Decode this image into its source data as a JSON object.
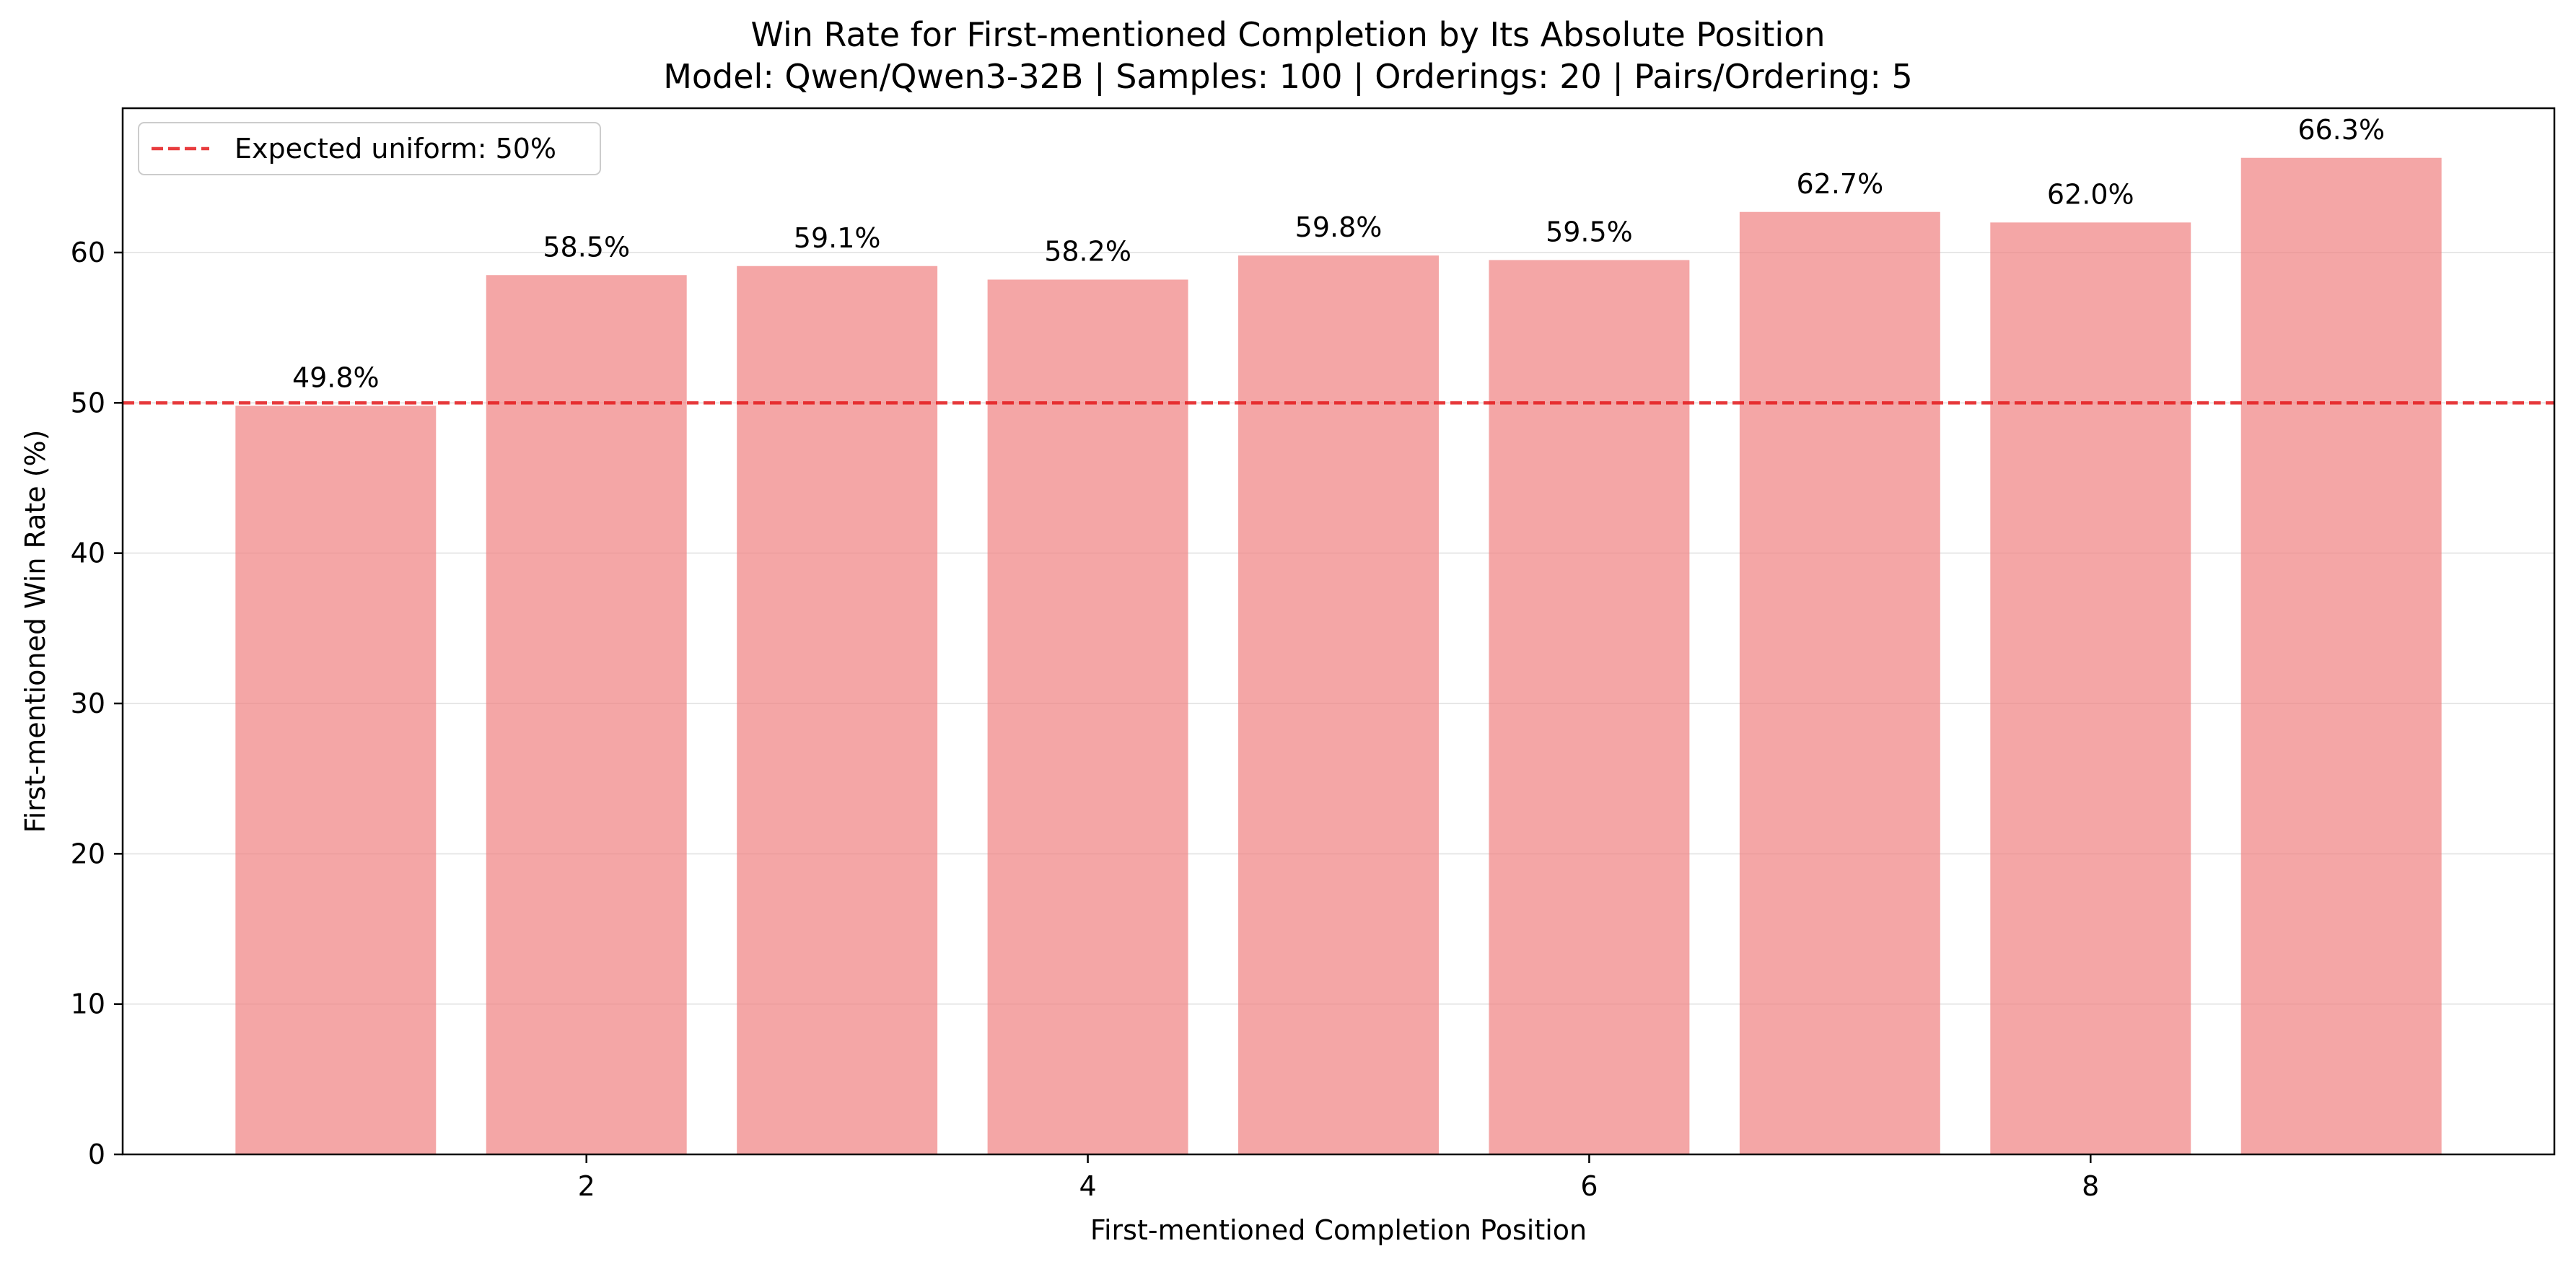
{
  "chart_data": {
    "type": "bar",
    "title": "Win Rate for First-mentioned Completion by Its Absolute Position",
    "subtitle": "Model: Qwen/Qwen3-32B | Samples: 100 | Orderings: 20 | Pairs/Ordering: 5",
    "xlabel": "First-mentioned Completion Position",
    "ylabel": "First-mentioned Win Rate (%)",
    "x": [
      1,
      2,
      3,
      4,
      5,
      6,
      7,
      8,
      9
    ],
    "values": [
      49.8,
      58.5,
      59.1,
      58.2,
      59.8,
      59.5,
      62.7,
      62.0,
      66.3
    ],
    "value_labels": [
      "49.8%",
      "58.5%",
      "59.1%",
      "58.2%",
      "59.8%",
      "59.5%",
      "62.7%",
      "62.0%",
      "66.3%"
    ],
    "xlim": [
      0.15,
      9.85
    ],
    "ylim": [
      0,
      69.6
    ],
    "xticks": [
      2,
      4,
      6,
      8
    ],
    "yticks": [
      0,
      10,
      20,
      30,
      40,
      50,
      60
    ],
    "grid": "horizontal",
    "bar_color": "#f08080",
    "bar_opacity": 0.7,
    "reference_line": {
      "y": 50,
      "label": "Expected uniform: 50%",
      "color": "#e41a1c",
      "style": "dashed"
    },
    "legend_position": "top-left"
  }
}
